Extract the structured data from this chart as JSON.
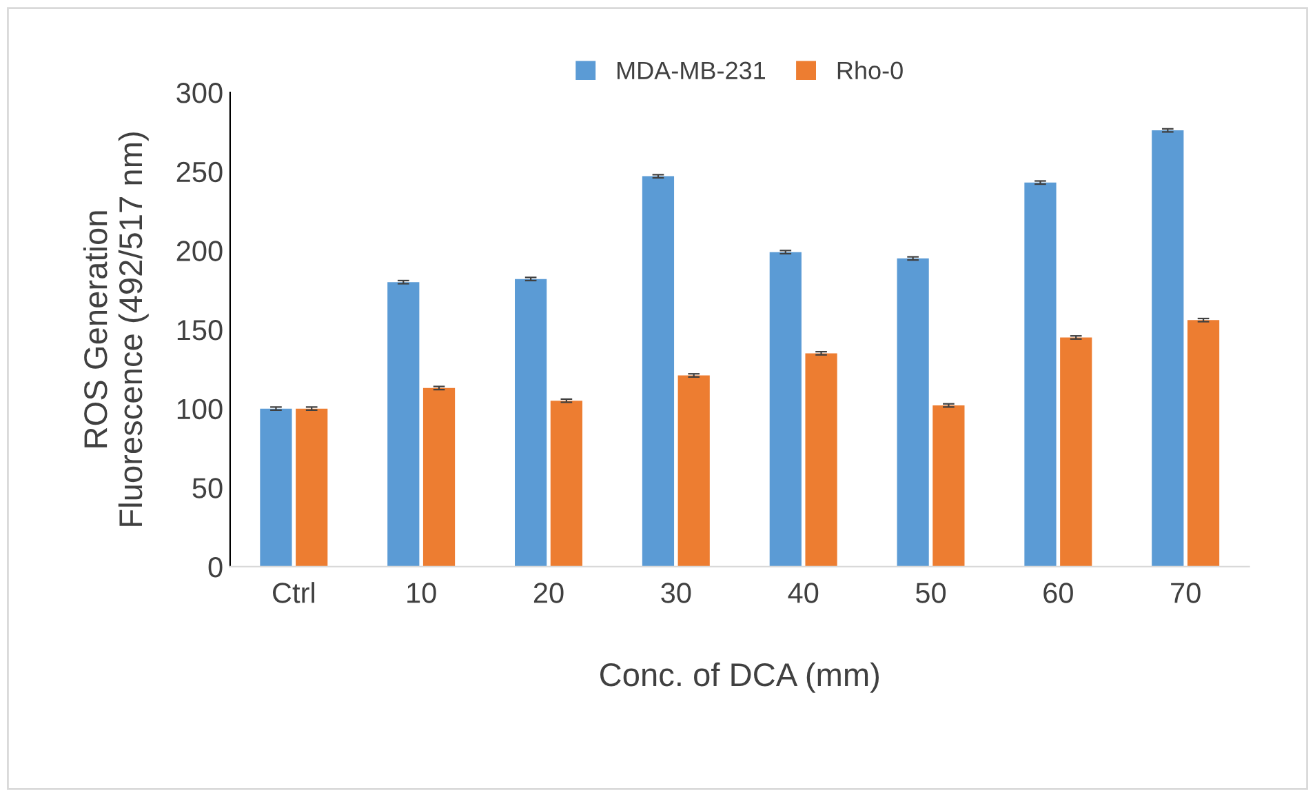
{
  "chart_data": {
    "type": "bar",
    "xlabel": "Conc. of DCA (mm)",
    "ylabel": "ROS Generation\nFluorescence (492/517 nm)",
    "categories": [
      "Ctrl",
      "10",
      "20",
      "30",
      "40",
      "50",
      "60",
      "70"
    ],
    "series": [
      {
        "name": "MDA-MB-231",
        "color": "#5b9bd5",
        "values": [
          100,
          180,
          182,
          247,
          199,
          195,
          243,
          276
        ],
        "errors": [
          1,
          1,
          1,
          1,
          1,
          1,
          1,
          1
        ]
      },
      {
        "name": "Rho-0",
        "color": "#ed7d31",
        "values": [
          100,
          113,
          105,
          121,
          135,
          102,
          145,
          156
        ],
        "errors": [
          1,
          1,
          1,
          1,
          1,
          1,
          1,
          1
        ]
      }
    ],
    "ylim": [
      0,
      300
    ],
    "yticks": [
      0,
      50,
      100,
      150,
      200,
      250,
      300
    ],
    "grid": false,
    "legend": "top"
  }
}
